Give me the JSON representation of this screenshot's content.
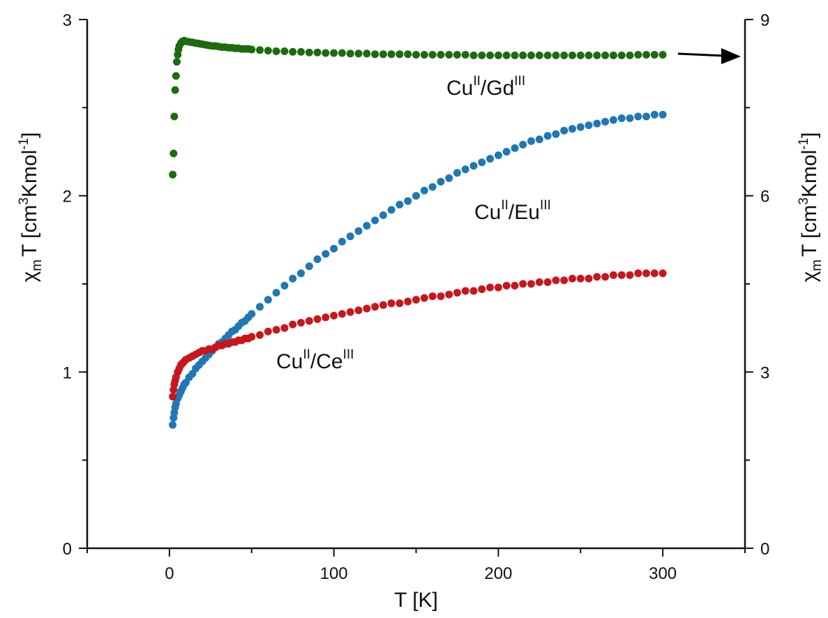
{
  "chart_data": {
    "type": "scatter",
    "title": "",
    "xlabel": {
      "main": "T [K]"
    },
    "ylabel_left": {
      "chi": "χ",
      "sub": "m",
      "t": "T [cm",
      "sup1": "3",
      "mid": "Kmol",
      "sup2": "-1",
      "end": "]"
    },
    "ylabel_right": {
      "chi": "χ",
      "sub": "m",
      "t": "T [cm",
      "sup1": "3",
      "mid": "Kmol",
      "sup2": "-1",
      "end": "]"
    },
    "xlim": [
      -50,
      350
    ],
    "ylim_left": [
      0,
      3
    ],
    "ylim_right": [
      0,
      9
    ],
    "x_ticks": [
      0,
      100,
      200,
      300
    ],
    "x_minor_ticks": [
      -50,
      50,
      150,
      250,
      350
    ],
    "y_left_ticks": [
      0,
      1,
      2,
      3
    ],
    "y_left_minor_ticks": [
      0.5,
      1.5,
      2.5
    ],
    "y_right_ticks": [
      0,
      3,
      6,
      9
    ],
    "y_right_minor_ticks": [
      1.5,
      4.5,
      7.5
    ],
    "grid": false,
    "series": [
      {
        "name": "CuII/GdIII",
        "label": {
          "base1": "Cu",
          "sup1": "II",
          "slash": "/Gd",
          "sup2": "III"
        },
        "color": "#1e6b0f",
        "axis": "right",
        "arrow": "right",
        "x": [
          2,
          2.5,
          3,
          3.5,
          4,
          4.5,
          5,
          5.5,
          6,
          7,
          8,
          9,
          10,
          12,
          14,
          16,
          18,
          20,
          22,
          24,
          26,
          28,
          30,
          32,
          34,
          36,
          38,
          40,
          42,
          44,
          46,
          48,
          50,
          55,
          60,
          65,
          70,
          75,
          80,
          85,
          90,
          95,
          100,
          105,
          110,
          115,
          120,
          125,
          130,
          135,
          140,
          145,
          150,
          155,
          160,
          165,
          170,
          175,
          180,
          185,
          190,
          195,
          200,
          205,
          210,
          215,
          220,
          225,
          230,
          235,
          240,
          245,
          250,
          255,
          260,
          265,
          270,
          275,
          280,
          285,
          290,
          295,
          300
        ],
        "y": [
          6.36,
          6.72,
          7.35,
          7.8,
          8.04,
          8.28,
          8.4,
          8.49,
          8.55,
          8.6,
          8.63,
          8.64,
          8.63,
          8.62,
          8.61,
          8.6,
          8.59,
          8.58,
          8.57,
          8.56,
          8.55,
          8.55,
          8.54,
          8.53,
          8.53,
          8.52,
          8.52,
          8.51,
          8.51,
          8.5,
          8.5,
          8.5,
          8.49,
          8.48,
          8.47,
          8.46,
          8.46,
          8.45,
          8.45,
          8.44,
          8.44,
          8.43,
          8.43,
          8.43,
          8.42,
          8.42,
          8.42,
          8.41,
          8.41,
          8.41,
          8.41,
          8.41,
          8.4,
          8.4,
          8.4,
          8.4,
          8.4,
          8.4,
          8.4,
          8.39,
          8.39,
          8.39,
          8.39,
          8.39,
          8.39,
          8.39,
          8.39,
          8.39,
          8.39,
          8.39,
          8.39,
          8.39,
          8.39,
          8.39,
          8.39,
          8.39,
          8.39,
          8.39,
          8.39,
          8.4,
          8.4,
          8.4,
          8.4
        ]
      },
      {
        "name": "CuII/EuIII",
        "label": {
          "base1": "Cu",
          "sup1": "II",
          "slash": "/Eu",
          "sup2": "III"
        },
        "color": "#1f77b4",
        "axis": "left",
        "x": [
          2,
          2.5,
          3,
          3.5,
          4,
          5,
          6,
          7,
          8,
          9,
          10,
          12,
          14,
          16,
          18,
          20,
          22,
          24,
          26,
          28,
          30,
          32,
          34,
          36,
          38,
          40,
          42,
          44,
          46,
          48,
          50,
          55,
          60,
          65,
          70,
          75,
          80,
          85,
          90,
          95,
          100,
          105,
          110,
          115,
          120,
          125,
          130,
          135,
          140,
          145,
          150,
          155,
          160,
          165,
          170,
          175,
          180,
          185,
          190,
          195,
          200,
          205,
          210,
          215,
          220,
          225,
          230,
          235,
          240,
          245,
          250,
          255,
          260,
          265,
          270,
          275,
          280,
          285,
          290,
          295,
          300
        ],
        "y": [
          0.7,
          0.74,
          0.77,
          0.8,
          0.82,
          0.85,
          0.87,
          0.89,
          0.91,
          0.93,
          0.94,
          0.97,
          0.99,
          1.02,
          1.04,
          1.06,
          1.08,
          1.1,
          1.12,
          1.14,
          1.16,
          1.17,
          1.19,
          1.21,
          1.23,
          1.24,
          1.26,
          1.28,
          1.29,
          1.31,
          1.33,
          1.37,
          1.41,
          1.45,
          1.49,
          1.53,
          1.56,
          1.6,
          1.64,
          1.67,
          1.7,
          1.74,
          1.77,
          1.8,
          1.83,
          1.86,
          1.89,
          1.92,
          1.95,
          1.97,
          2.0,
          2.03,
          2.05,
          2.08,
          2.1,
          2.13,
          2.15,
          2.17,
          2.19,
          2.21,
          2.23,
          2.25,
          2.27,
          2.29,
          2.31,
          2.32,
          2.34,
          2.35,
          2.37,
          2.38,
          2.39,
          2.4,
          2.41,
          2.42,
          2.43,
          2.44,
          2.44,
          2.45,
          2.45,
          2.46,
          2.46
        ]
      },
      {
        "name": "CuII/CeIII",
        "label": {
          "base1": "Cu",
          "sup1": "II",
          "slash": "/Ce",
          "sup2": "III"
        },
        "color": "#c8161d",
        "axis": "left",
        "x": [
          2,
          2.5,
          3,
          3.5,
          4,
          5,
          6,
          7,
          8,
          9,
          10,
          12,
          14,
          16,
          18,
          20,
          22,
          24,
          26,
          28,
          30,
          32,
          34,
          36,
          38,
          40,
          42,
          44,
          46,
          48,
          50,
          55,
          60,
          65,
          70,
          75,
          80,
          85,
          90,
          95,
          100,
          105,
          110,
          115,
          120,
          125,
          130,
          135,
          140,
          145,
          150,
          155,
          160,
          165,
          170,
          175,
          180,
          185,
          190,
          195,
          200,
          205,
          210,
          215,
          220,
          225,
          230,
          235,
          240,
          245,
          250,
          255,
          260,
          265,
          270,
          275,
          280,
          285,
          290,
          295,
          300
        ],
        "y": [
          0.86,
          0.9,
          0.93,
          0.95,
          0.97,
          1.0,
          1.02,
          1.04,
          1.05,
          1.06,
          1.07,
          1.08,
          1.09,
          1.1,
          1.11,
          1.12,
          1.12,
          1.13,
          1.13,
          1.14,
          1.15,
          1.15,
          1.16,
          1.16,
          1.17,
          1.17,
          1.18,
          1.18,
          1.19,
          1.19,
          1.2,
          1.21,
          1.23,
          1.24,
          1.25,
          1.27,
          1.28,
          1.29,
          1.3,
          1.31,
          1.32,
          1.33,
          1.34,
          1.35,
          1.36,
          1.37,
          1.38,
          1.39,
          1.39,
          1.4,
          1.41,
          1.42,
          1.43,
          1.43,
          1.44,
          1.45,
          1.46,
          1.46,
          1.47,
          1.48,
          1.48,
          1.49,
          1.49,
          1.5,
          1.5,
          1.51,
          1.51,
          1.52,
          1.52,
          1.53,
          1.53,
          1.53,
          1.54,
          1.54,
          1.55,
          1.55,
          1.55,
          1.56,
          1.56,
          1.56,
          1.56
        ]
      }
    ]
  }
}
